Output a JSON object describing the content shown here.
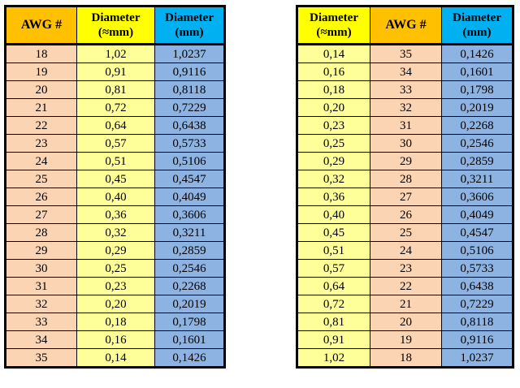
{
  "left_table": {
    "headers": {
      "awg": "AWG #",
      "approx_line1": "Diameter",
      "approx_line2": "(≈mm)",
      "exact_line1": "Diameter",
      "exact_line2": "(mm)"
    },
    "rows": [
      [
        "18",
        "1,02",
        "1,0237"
      ],
      [
        "19",
        "0,91",
        "0,9116"
      ],
      [
        "20",
        "0,81",
        "0,8118"
      ],
      [
        "21",
        "0,72",
        "0,7229"
      ],
      [
        "22",
        "0,64",
        "0,6438"
      ],
      [
        "23",
        "0,57",
        "0,5733"
      ],
      [
        "24",
        "0,51",
        "0,5106"
      ],
      [
        "25",
        "0,45",
        "0,4547"
      ],
      [
        "26",
        "0,40",
        "0,4049"
      ],
      [
        "27",
        "0,36",
        "0,3606"
      ],
      [
        "28",
        "0,32",
        "0,3211"
      ],
      [
        "29",
        "0,29",
        "0,2859"
      ],
      [
        "30",
        "0,25",
        "0,2546"
      ],
      [
        "31",
        "0,23",
        "0,2268"
      ],
      [
        "32",
        "0,20",
        "0,2019"
      ],
      [
        "33",
        "0,18",
        "0,1798"
      ],
      [
        "34",
        "0,16",
        "0,1601"
      ],
      [
        "35",
        "0,14",
        "0,1426"
      ]
    ]
  },
  "right_table": {
    "headers": {
      "approx_line1": "Diameter",
      "approx_line2": "(≈mm)",
      "awg": "AWG #",
      "exact_line1": "Diameter",
      "exact_line2": "(mm)"
    },
    "rows": [
      [
        "0,14",
        "35",
        "0,1426"
      ],
      [
        "0,16",
        "34",
        "0,1601"
      ],
      [
        "0,18",
        "33",
        "0,1798"
      ],
      [
        "0,20",
        "32",
        "0,2019"
      ],
      [
        "0,23",
        "31",
        "0,2268"
      ],
      [
        "0,25",
        "30",
        "0,2546"
      ],
      [
        "0,29",
        "29",
        "0,2859"
      ],
      [
        "0,32",
        "28",
        "0,3211"
      ],
      [
        "0,36",
        "27",
        "0,3606"
      ],
      [
        "0,40",
        "26",
        "0,4049"
      ],
      [
        "0,45",
        "25",
        "0,4547"
      ],
      [
        "0,51",
        "24",
        "0,5106"
      ],
      [
        "0,57",
        "23",
        "0,5733"
      ],
      [
        "0,64",
        "22",
        "0,6438"
      ],
      [
        "0,72",
        "21",
        "0,7229"
      ],
      [
        "0,81",
        "20",
        "0,8118"
      ],
      [
        "0,91",
        "19",
        "0,9116"
      ],
      [
        "1,02",
        "18",
        "1,0237"
      ]
    ]
  },
  "colors": {
    "header_awg": "#ffc000",
    "header_approx": "#ffff00",
    "header_exact": "#00b0f0",
    "cell_awg": "#fbd4b4",
    "cell_approx": "#ffff99",
    "cell_exact": "#8db3e2"
  }
}
